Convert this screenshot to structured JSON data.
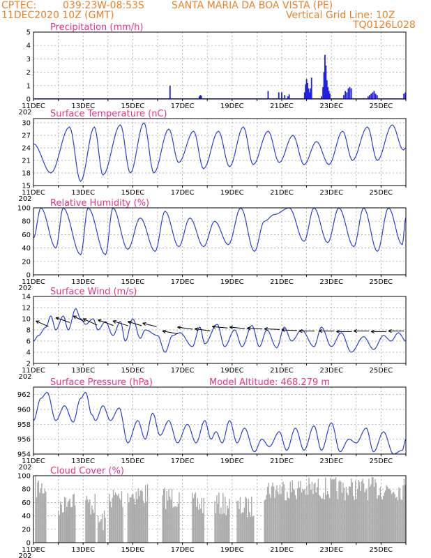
{
  "header": {
    "source": "CPTEC:",
    "coords": "039:23W-08:53S",
    "location": "SANTA MARIA DA BOA VISTA (PE)",
    "date": "11DEC2020 10Z (GMT)",
    "grid_note": "Vertical Grid Line: 10Z",
    "model_id": "TQ0126L028"
  },
  "colors": {
    "header": "#e8822b",
    "title": "#e8318a",
    "line": "#2b3fd6",
    "bar": "#2020e0",
    "cloud": "#a9a9a9"
  },
  "x_labels": [
    "11DEC",
    "13DEC",
    "15DEC",
    "17DEC",
    "19DEC",
    "21DEC",
    "23DEC",
    "25DEC"
  ],
  "x_label_stub": "202",
  "chart_data": [
    {
      "type": "bar",
      "title": "Precipitation (mm/h)",
      "ylim": [
        0,
        5
      ],
      "yticks": [
        "0",
        "1",
        "2",
        "3",
        "4",
        "5"
      ],
      "x_unit": "days since 11DEC2020 10Z",
      "grid": true,
      "bars": [
        {
          "x": 5.5,
          "v": 1.0
        },
        {
          "x": 6.68,
          "v": 0.2
        },
        {
          "x": 6.72,
          "v": 0.3
        },
        {
          "x": 6.76,
          "v": 0.25
        },
        {
          "x": 9.45,
          "v": 0.6
        },
        {
          "x": 9.88,
          "v": 0.5
        },
        {
          "x": 10.0,
          "v": 0.5
        },
        {
          "x": 10.12,
          "v": 0.3
        },
        {
          "x": 10.25,
          "v": 0.2
        },
        {
          "x": 10.3,
          "v": 0.35
        },
        {
          "x": 10.92,
          "v": 0.5
        },
        {
          "x": 10.96,
          "v": 1.1
        },
        {
          "x": 11.0,
          "v": 1.5
        },
        {
          "x": 11.04,
          "v": 1.2
        },
        {
          "x": 11.08,
          "v": 0.8
        },
        {
          "x": 11.12,
          "v": 0.5
        },
        {
          "x": 11.16,
          "v": 0.8
        },
        {
          "x": 11.2,
          "v": 1.6
        },
        {
          "x": 11.6,
          "v": 0.2
        },
        {
          "x": 11.66,
          "v": 0.9
        },
        {
          "x": 11.7,
          "v": 2.0
        },
        {
          "x": 11.74,
          "v": 3.3
        },
        {
          "x": 11.78,
          "v": 2.5
        },
        {
          "x": 11.82,
          "v": 1.4
        },
        {
          "x": 11.86,
          "v": 0.9
        },
        {
          "x": 11.9,
          "v": 0.6
        },
        {
          "x": 11.94,
          "v": 0.4
        },
        {
          "x": 12.5,
          "v": 0.3
        },
        {
          "x": 12.56,
          "v": 0.6
        },
        {
          "x": 12.62,
          "v": 0.5
        },
        {
          "x": 12.68,
          "v": 0.8
        },
        {
          "x": 12.74,
          "v": 0.9
        },
        {
          "x": 12.8,
          "v": 0.8
        },
        {
          "x": 13.48,
          "v": 0.2
        },
        {
          "x": 13.54,
          "v": 0.3
        },
        {
          "x": 13.6,
          "v": 0.4
        },
        {
          "x": 13.66,
          "v": 0.5
        },
        {
          "x": 13.72,
          "v": 0.6
        },
        {
          "x": 13.78,
          "v": 0.4
        },
        {
          "x": 13.84,
          "v": 0.3
        },
        {
          "x": 14.92,
          "v": 0.4
        },
        {
          "x": 14.98,
          "v": 0.5
        }
      ]
    },
    {
      "type": "line",
      "title": "Surface Temperature (nC)",
      "ylim": [
        15,
        31
      ],
      "yticks": [
        "15",
        "18",
        "21",
        "24",
        "27",
        "30"
      ],
      "ytick_values": [
        15,
        18,
        21,
        24,
        27,
        30
      ],
      "x_unit": "days since 11DEC2020 10Z",
      "grid": true,
      "extrema": [
        [
          0,
          25
        ],
        [
          0.7,
          18
        ],
        [
          1.45,
          29
        ],
        [
          1.9,
          16
        ],
        [
          2.45,
          29
        ],
        [
          2.8,
          17.5
        ],
        [
          3.5,
          29.5
        ],
        [
          3.9,
          18
        ],
        [
          4.45,
          30
        ],
        [
          4.85,
          18
        ],
        [
          5.45,
          28.5
        ],
        [
          5.85,
          20.5
        ],
        [
          6.45,
          28
        ],
        [
          6.85,
          19
        ],
        [
          7.45,
          28
        ],
        [
          7.9,
          19.5
        ],
        [
          8.45,
          29
        ],
        [
          8.85,
          20
        ],
        [
          9.45,
          28
        ],
        [
          9.9,
          20.5
        ],
        [
          10.45,
          27
        ],
        [
          10.9,
          20
        ],
        [
          11.4,
          25.5
        ],
        [
          11.9,
          20
        ],
        [
          12.45,
          28
        ],
        [
          12.85,
          21
        ],
        [
          13.45,
          29
        ],
        [
          13.85,
          21
        ],
        [
          14.45,
          29.5
        ],
        [
          14.9,
          23.5
        ],
        [
          15.0,
          24
        ]
      ]
    },
    {
      "type": "line",
      "title": "Relative Humidity (%)",
      "ylim": [
        0,
        100
      ],
      "yticks": [
        "0",
        "20",
        "40",
        "60",
        "80",
        "100"
      ],
      "ytick_values": [
        0,
        20,
        40,
        60,
        80,
        100
      ],
      "x_unit": "days since 11DEC2020 10Z",
      "grid": true,
      "extrema": [
        [
          0,
          55
        ],
        [
          0.3,
          100
        ],
        [
          0.9,
          40
        ],
        [
          1.2,
          100
        ],
        [
          1.9,
          30
        ],
        [
          2.2,
          100
        ],
        [
          2.9,
          30
        ],
        [
          3.2,
          100
        ],
        [
          3.8,
          38
        ],
        [
          4.3,
          85
        ],
        [
          4.9,
          35
        ],
        [
          5.3,
          95
        ],
        [
          5.85,
          42
        ],
        [
          6.3,
          85
        ],
        [
          6.85,
          42
        ],
        [
          7.3,
          80
        ],
        [
          7.85,
          45
        ],
        [
          8.35,
          100
        ],
        [
          8.9,
          35
        ],
        [
          9.3,
          80
        ],
        [
          9.7,
          90
        ],
        [
          10.3,
          100
        ],
        [
          10.9,
          50
        ],
        [
          11.3,
          100
        ],
        [
          11.85,
          48
        ],
        [
          12.3,
          100
        ],
        [
          12.9,
          42
        ],
        [
          13.3,
          100
        ],
        [
          13.85,
          35
        ],
        [
          14.3,
          100
        ],
        [
          14.85,
          45
        ],
        [
          15.0,
          85
        ]
      ]
    },
    {
      "type": "line",
      "title": "Surface Wind (m/s)",
      "ylim": [
        2,
        14
      ],
      "yticks": [
        "2",
        "4",
        "6",
        "8",
        "10",
        "12",
        "14"
      ],
      "ytick_values": [
        2,
        4,
        6,
        8,
        10,
        12,
        14
      ],
      "x_unit": "days since 11DEC2020 10Z",
      "grid": true,
      "extrema": [
        [
          0,
          6
        ],
        [
          0.2,
          7
        ],
        [
          0.5,
          8.5
        ],
        [
          0.7,
          10.5
        ],
        [
          0.9,
          8
        ],
        [
          1.2,
          10.5
        ],
        [
          1.4,
          8
        ],
        [
          1.7,
          11.8
        ],
        [
          1.9,
          10
        ],
        [
          2.1,
          9
        ],
        [
          2.4,
          10
        ],
        [
          2.6,
          8
        ],
        [
          2.9,
          9.5
        ],
        [
          3.2,
          7
        ],
        [
          3.5,
          9.5
        ],
        [
          3.7,
          6
        ],
        [
          4.0,
          10
        ],
        [
          4.3,
          6.5
        ],
        [
          4.5,
          8
        ],
        [
          5.0,
          7
        ],
        [
          5.3,
          4
        ],
        [
          5.6,
          7
        ],
        [
          5.9,
          7.5
        ],
        [
          6.4,
          5
        ],
        [
          6.7,
          8.5
        ],
        [
          6.9,
          5.5
        ],
        [
          7.4,
          9
        ],
        [
          7.7,
          5
        ],
        [
          8.1,
          8
        ],
        [
          8.4,
          5
        ],
        [
          8.8,
          8.8
        ],
        [
          9.1,
          5
        ],
        [
          9.4,
          8
        ],
        [
          9.8,
          4.8
        ],
        [
          10.1,
          8.5
        ],
        [
          10.4,
          6
        ],
        [
          10.8,
          8
        ],
        [
          11.3,
          5
        ],
        [
          11.6,
          8.5
        ],
        [
          12.0,
          5
        ],
        [
          12.4,
          7.5
        ],
        [
          12.8,
          4
        ],
        [
          13.3,
          6.8
        ],
        [
          13.7,
          4.5
        ],
        [
          14.1,
          7
        ],
        [
          14.4,
          6
        ],
        [
          14.7,
          7.5
        ],
        [
          15.0,
          6
        ]
      ],
      "vectors": [
        {
          "x": 0.1,
          "y": 9.6,
          "dx": 18,
          "dy": 8
        },
        {
          "x": 0.9,
          "y": 10.2,
          "dx": 20,
          "dy": 7
        },
        {
          "x": 1.6,
          "y": 10.5,
          "dx": 16,
          "dy": 8
        },
        {
          "x": 2.0,
          "y": 10.0,
          "dx": 20,
          "dy": 9
        },
        {
          "x": 2.6,
          "y": 9.8,
          "dx": 22,
          "dy": 8
        },
        {
          "x": 3.2,
          "y": 9.6,
          "dx": 22,
          "dy": 7
        },
        {
          "x": 3.8,
          "y": 9.5,
          "dx": 20,
          "dy": 6
        },
        {
          "x": 4.4,
          "y": 9.2,
          "dx": 20,
          "dy": 5
        },
        {
          "x": 5.2,
          "y": 7.8,
          "dx": 22,
          "dy": 4
        },
        {
          "x": 5.8,
          "y": 8.5,
          "dx": 22,
          "dy": 3
        },
        {
          "x": 6.5,
          "y": 8.2,
          "dx": 22,
          "dy": 3
        },
        {
          "x": 7.2,
          "y": 8.6,
          "dx": 22,
          "dy": 2
        },
        {
          "x": 7.9,
          "y": 8.5,
          "dx": 22,
          "dy": 2
        },
        {
          "x": 8.6,
          "y": 8.3,
          "dx": 22,
          "dy": 1
        },
        {
          "x": 9.3,
          "y": 8.2,
          "dx": 22,
          "dy": 1
        },
        {
          "x": 10.0,
          "y": 8.0,
          "dx": 22,
          "dy": 1
        },
        {
          "x": 10.7,
          "y": 7.8,
          "dx": 22,
          "dy": 0
        },
        {
          "x": 11.5,
          "y": 7.8,
          "dx": 22,
          "dy": 0
        },
        {
          "x": 12.2,
          "y": 7.7,
          "dx": 22,
          "dy": 0
        },
        {
          "x": 12.9,
          "y": 7.8,
          "dx": 22,
          "dy": 0
        },
        {
          "x": 13.6,
          "y": 7.7,
          "dx": 22,
          "dy": 0
        },
        {
          "x": 14.3,
          "y": 7.8,
          "dx": 22,
          "dy": 0
        }
      ]
    },
    {
      "type": "line",
      "title": "Surface Pressure (hPa)",
      "extra_label": "Model Altitude: 468.279 m",
      "ylim": [
        954,
        963
      ],
      "yticks": [
        "954",
        "956",
        "958",
        "960",
        "962"
      ],
      "ytick_values": [
        954,
        956,
        958,
        960,
        962
      ],
      "x_unit": "days since 11DEC2020 10Z",
      "grid": true,
      "extrema": [
        [
          0,
          958.5
        ],
        [
          0.3,
          961.5
        ],
        [
          0.55,
          962.3
        ],
        [
          0.9,
          958.5
        ],
        [
          1.25,
          960.5
        ],
        [
          1.6,
          958.3
        ],
        [
          1.9,
          961.5
        ],
        [
          2.1,
          962.3
        ],
        [
          2.35,
          959.3
        ],
        [
          2.5,
          958.5
        ],
        [
          2.8,
          960.5
        ],
        [
          3.1,
          958.5
        ],
        [
          3.45,
          960.2
        ],
        [
          3.8,
          955.5
        ],
        [
          4.2,
          958.5
        ],
        [
          4.5,
          956
        ],
        [
          4.8,
          959.5
        ],
        [
          5.1,
          956.5
        ],
        [
          5.45,
          958.5
        ],
        [
          5.8,
          955.5
        ],
        [
          6.2,
          958
        ],
        [
          6.55,
          955.5
        ],
        [
          6.9,
          958.5
        ],
        [
          7.15,
          956
        ],
        [
          7.35,
          957
        ],
        [
          7.6,
          955.5
        ],
        [
          7.9,
          958.5
        ],
        [
          8.2,
          955.5
        ],
        [
          8.5,
          957.5
        ],
        [
          8.9,
          954.3
        ],
        [
          9.2,
          956
        ],
        [
          9.5,
          955
        ],
        [
          9.9,
          957
        ],
        [
          10.2,
          954.5
        ],
        [
          10.55,
          957.5
        ],
        [
          10.9,
          954.5
        ],
        [
          11.3,
          957.8
        ],
        [
          11.6,
          954.5
        ],
        [
          12.0,
          958.2
        ],
        [
          12.35,
          954.3
        ],
        [
          12.7,
          956
        ],
        [
          13.0,
          955.5
        ],
        [
          13.4,
          957.5
        ],
        [
          13.7,
          954.3
        ],
        [
          14.1,
          957
        ],
        [
          14.5,
          954
        ],
        [
          14.85,
          954.5
        ],
        [
          15.0,
          956
        ]
      ]
    },
    {
      "type": "area",
      "title": "Cloud Cover (%)",
      "ylim": [
        0,
        100
      ],
      "yticks": [
        "0",
        "20",
        "40",
        "60",
        "80",
        "100"
      ],
      "ytick_values": [
        0,
        20,
        40,
        60,
        80,
        100
      ],
      "x_unit": "days since 11DEC2020 10Z",
      "grid": true,
      "segments": [
        {
          "start": 0.08,
          "end": 0.5,
          "level": 90
        },
        {
          "start": 1.0,
          "end": 1.5,
          "level": 60
        },
        {
          "start": 1.3,
          "end": 1.7,
          "level": 75
        },
        {
          "start": 2.1,
          "end": 2.5,
          "level": 65
        },
        {
          "start": 2.6,
          "end": 2.9,
          "level": 40
        },
        {
          "start": 3.05,
          "end": 3.6,
          "level": 75
        },
        {
          "start": 3.8,
          "end": 4.6,
          "level": 80
        },
        {
          "start": 5.2,
          "end": 5.9,
          "level": 75
        },
        {
          "start": 6.4,
          "end": 6.9,
          "level": 65
        },
        {
          "start": 7.3,
          "end": 7.9,
          "level": 65
        },
        {
          "start": 8.2,
          "end": 8.9,
          "level": 60
        },
        {
          "start": 9.3,
          "end": 15.0,
          "level": 88
        }
      ]
    }
  ]
}
